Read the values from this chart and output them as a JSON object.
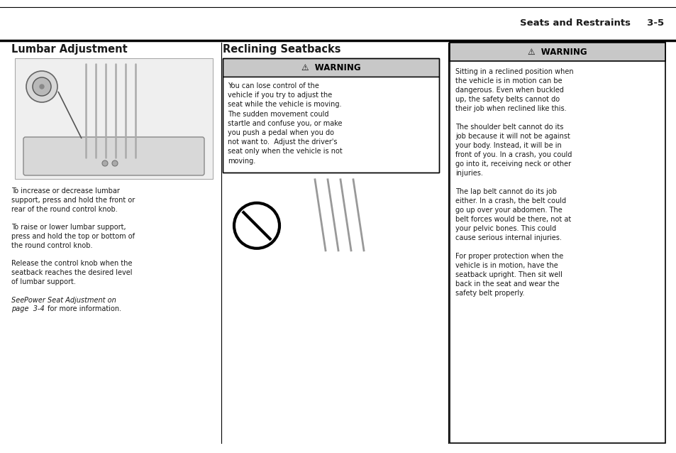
{
  "bg_color": "#ffffff",
  "header_text": "Seats and Restraints",
  "header_page": "3-5",
  "col1_title": "Lumbar Adjustment",
  "col2_title": "Reclining Seatbacks",
  "col1_body": [
    "To increase or decrease lumbar",
    "support, press and hold the front or",
    "rear of the round control knob.",
    "",
    "To raise or lower lumbar support,",
    "press and hold the top or bottom of",
    "the round control knob.",
    "",
    "Release the control knob when the",
    "seatback reaches the desired level",
    "of lumbar support.",
    "",
    "See Power Seat Adjustment on",
    "page  3-4 for more information."
  ],
  "col1_body_italic_lines": [
    12,
    13
  ],
  "col2_warning_title": "WARNING",
  "col2_warning_body": [
    "You can lose control of the",
    "vehicle if you try to adjust the",
    "seat while the vehicle is moving.",
    "The sudden movement could",
    "startle and confuse you, or make",
    "you push a pedal when you do",
    "not want to.  Adjust the driver's",
    "seat only when the vehicle is not",
    "moving."
  ],
  "col3_warning_title": "WARNING",
  "col3_body": [
    "Sitting in a reclined position when",
    "the vehicle is in motion can be",
    "dangerous. Even when buckled",
    "up, the safety belts cannot do",
    "their job when reclined like this.",
    "",
    "The shoulder belt cannot do its",
    "job because it will not be against",
    "your body. Instead, it will be in",
    "front of you. In a crash, you could",
    "go into it, receiving neck or other",
    "injuries.",
    "",
    "The lap belt cannot do its job",
    "either. In a crash, the belt could",
    "go up over your abdomen. The",
    "belt forces would be there, not at",
    "your pelvic bones. This could",
    "cause serious internal injuries.",
    "",
    "For proper protection when the",
    "vehicle is in motion, have the",
    "seatback upright. Then sit well",
    "back in the seat and wear the",
    "safety belt properly."
  ],
  "font_size_title": 10.5,
  "font_size_header": 9.5,
  "font_size_body": 7.0,
  "font_size_warning_title": 8.5,
  "gray_color": "#c8c8c8",
  "border_color": "#000000",
  "text_color": "#1a1a1a"
}
